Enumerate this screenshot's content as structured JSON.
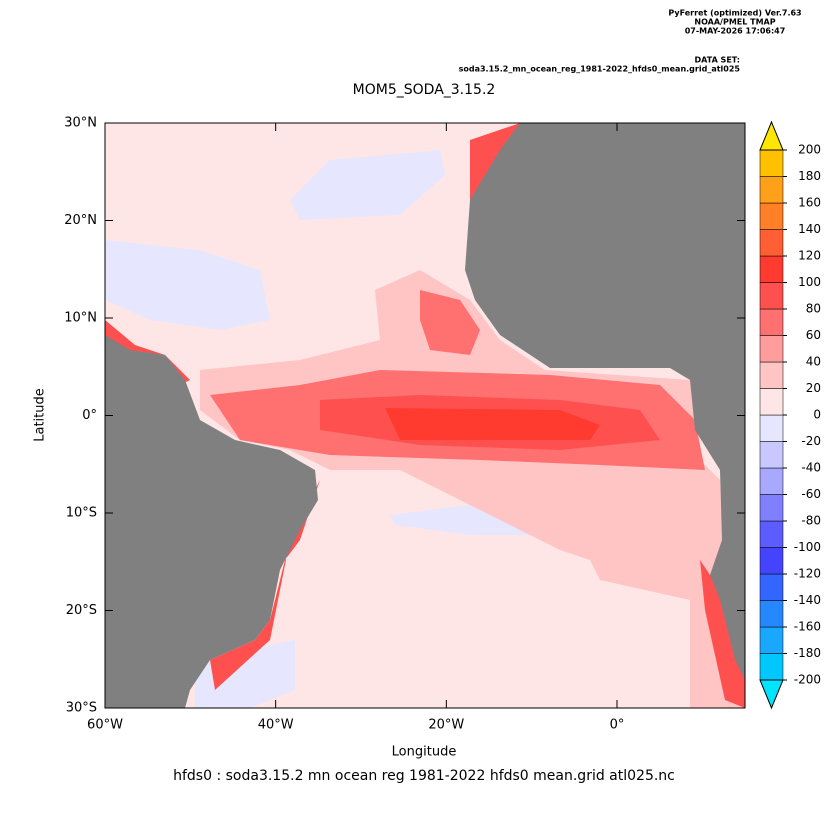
{
  "header": {
    "lines": [
      "PyFerret (optimized) Ver.7.63",
      "NOAA/PMEL TMAP",
      "07-MAY-2026 17:06:47"
    ],
    "dataset_label": "DATA SET:",
    "dataset": "soda3.15.2_mn_ocean_reg_1981-2022_hfds0_mean.grid_atl025"
  },
  "chart_data": {
    "type": "heatmap",
    "title": "MOM5_SODA_3.15.2",
    "x_label": "Longitude",
    "y_label": "Latitude",
    "xlim": [
      -60,
      15
    ],
    "ylim": [
      -30,
      30
    ],
    "xticks": [
      {
        "value": -60,
        "label": "60°W"
      },
      {
        "value": -40,
        "label": "40°W"
      },
      {
        "value": -20,
        "label": "20°W"
      },
      {
        "value": 0,
        "label": "0°"
      }
    ],
    "yticks": [
      {
        "value": 30,
        "label": "30°N"
      },
      {
        "value": 20,
        "label": "20°N"
      },
      {
        "value": 10,
        "label": "10°N"
      },
      {
        "value": 0,
        "label": "0°"
      },
      {
        "value": -10,
        "label": "10°S"
      },
      {
        "value": -20,
        "label": "20°S"
      },
      {
        "value": -30,
        "label": "30°S"
      }
    ],
    "colorbar": {
      "levels": [
        -200,
        -180,
        -160,
        -140,
        -120,
        -100,
        -80,
        -60,
        -40,
        -20,
        0,
        20,
        40,
        60,
        80,
        100,
        120,
        140,
        160,
        180,
        200
      ],
      "colors": [
        "#00e5ff",
        "#00c8ff",
        "#1aa8ff",
        "#2688ff",
        "#3366ff",
        "#4444ff",
        "#5c5cff",
        "#8080ff",
        "#a8a8ff",
        "#c8c8ff",
        "#e6e6ff",
        "#ffe6e6",
        "#ffc4c4",
        "#ff9c9c",
        "#ff7070",
        "#ff5050",
        "#ff3b30",
        "#ff5f33",
        "#ff8026",
        "#ffa01a",
        "#ffc000",
        "#ffe600"
      ]
    },
    "footer": "hfds0 : soda3.15.2 mn ocean reg 1981-2022 hfds0 mean.grid atl025.nc"
  }
}
